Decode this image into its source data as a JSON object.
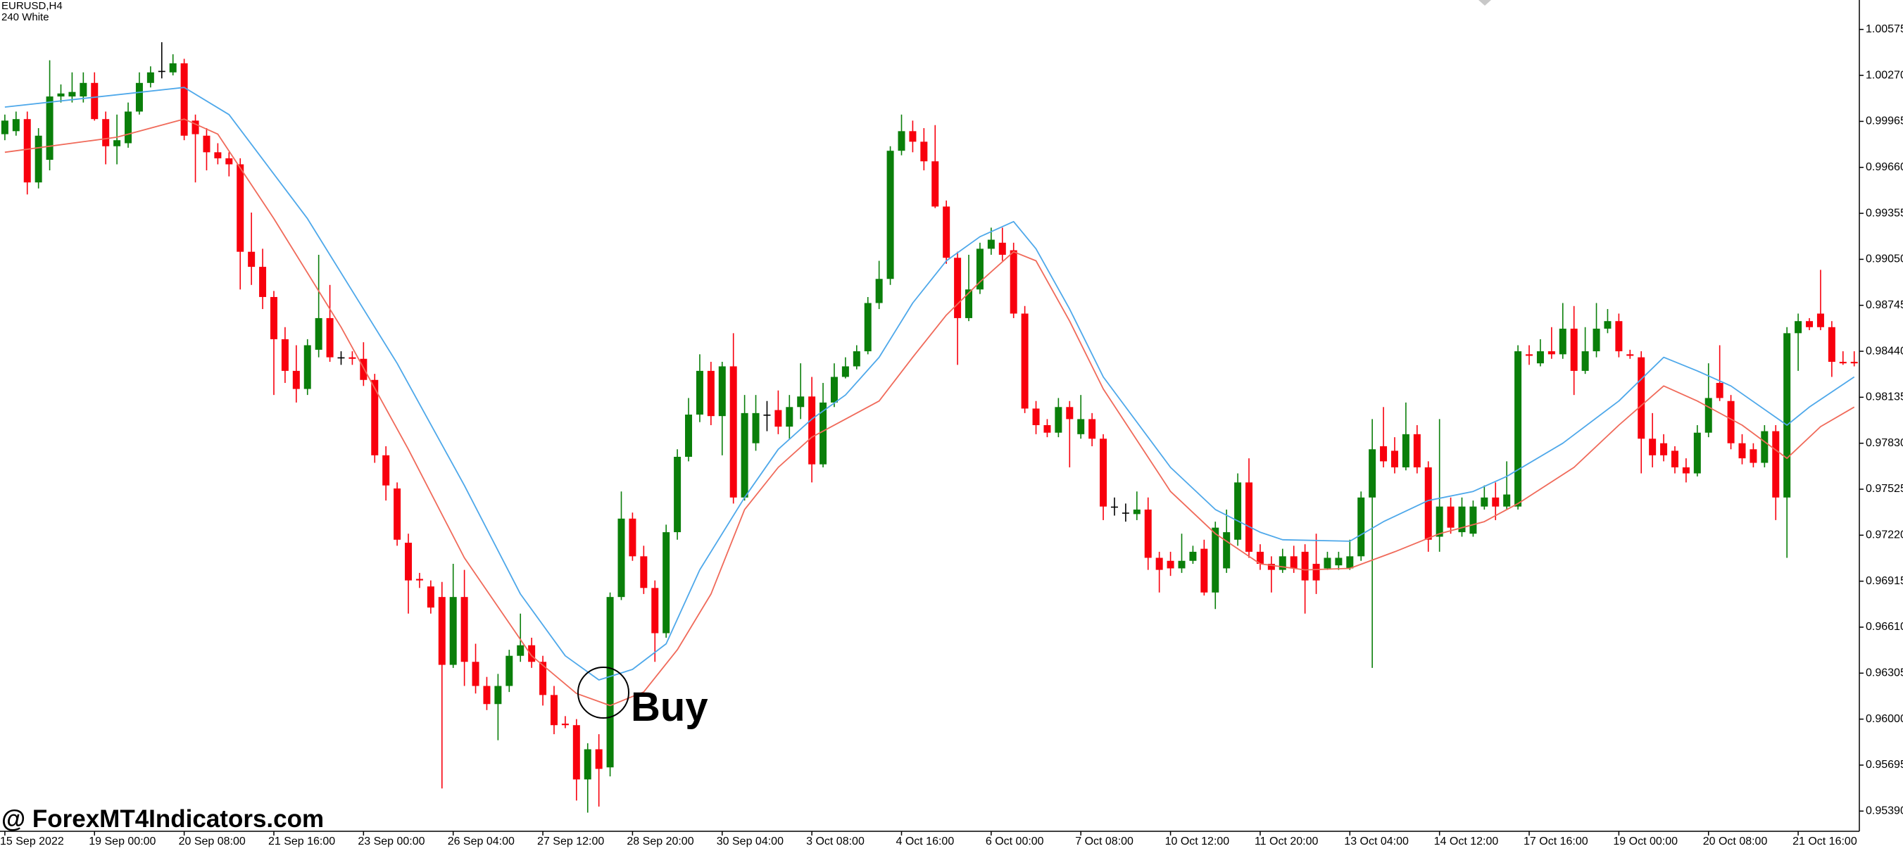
{
  "chart_data": {
    "type": "candlestick",
    "title": "EURUSD,H4",
    "subtitle": "240 White",
    "watermark": "@ ForexMT4Indicators.com",
    "annotation": "Buy",
    "up_color": "#0a7f0a",
    "down_color": "#f8000d",
    "doji_color": "#000000",
    "ylim": [
      0.95256,
      1.0077
    ],
    "yticks": [
      1.00575,
      {
        "value": 1.0027,
        "label": "1.00270"
      },
      0.99965,
      {
        "value": 0.9966,
        "label": "0.99660"
      },
      0.99355,
      {
        "value": 0.9905,
        "label": "0.99050"
      },
      0.98745,
      {
        "value": 0.9844,
        "label": "0.98440"
      },
      0.98135,
      {
        "value": 0.9783,
        "label": "0.97830"
      },
      0.97525,
      {
        "value": 0.9722,
        "label": "0.97220"
      },
      0.96915,
      {
        "value": 0.9661,
        "label": "0.96610"
      },
      0.96305,
      {
        "value": 0.96,
        "label": "0.96000"
      },
      0.95695,
      {
        "value": 0.9539,
        "label": "0.95390"
      }
    ],
    "categories": [
      "15 Sep 2022",
      null,
      null,
      null,
      null,
      null,
      null,
      null,
      "19 Sep 00:00",
      null,
      null,
      null,
      null,
      null,
      null,
      null,
      "20 Sep 08:00",
      null,
      null,
      null,
      null,
      null,
      null,
      null,
      "21 Sep 16:00",
      null,
      null,
      null,
      null,
      null,
      null,
      null,
      "23 Sep 00:00",
      null,
      null,
      null,
      null,
      null,
      null,
      null,
      "26 Sep 04:00",
      null,
      null,
      null,
      null,
      null,
      null,
      null,
      "27 Sep 12:00",
      null,
      null,
      null,
      null,
      null,
      null,
      null,
      "28 Sep 20:00",
      null,
      null,
      null,
      null,
      null,
      null,
      null,
      "30 Sep 04:00",
      null,
      null,
      null,
      null,
      null,
      null,
      null,
      "3 Oct 08:00",
      null,
      null,
      null,
      null,
      null,
      null,
      null,
      "4 Oct 16:00",
      null,
      null,
      null,
      null,
      null,
      null,
      null,
      "6 Oct 00:00",
      null,
      null,
      null,
      null,
      null,
      null,
      null,
      "7 Oct 08:00",
      null,
      null,
      null,
      null,
      null,
      null,
      null,
      "10 Oct 12:00",
      null,
      null,
      null,
      null,
      null,
      null,
      null,
      "11 Oct 20:00",
      null,
      null,
      null,
      null,
      null,
      null,
      null,
      "13 Oct 04:00",
      null,
      null,
      null,
      null,
      null,
      null,
      null,
      "14 Oct 12:00",
      null,
      null,
      null,
      null,
      null,
      null,
      null,
      "17 Oct 16:00",
      null,
      null,
      null,
      null,
      null,
      null,
      null,
      "19 Oct 00:00",
      null,
      null,
      null,
      null,
      null,
      null,
      null,
      "20 Oct 08:00",
      null,
      null,
      null,
      null,
      null,
      null,
      null,
      "21 Oct 16:00",
      null,
      null,
      null,
      null,
      null
    ],
    "candles": [
      [
        0.9988,
        1.0001,
        0.9984,
        0.9997
      ],
      [
        0.999,
        1.0003,
        0.9987,
        0.9998
      ],
      [
        0.9998,
        1.0003,
        0.9948,
        0.9956
      ],
      [
        0.9956,
        0.9992,
        0.9952,
        0.9987
      ],
      [
        0.9971,
        1.0037,
        0.9964,
        1.0013
      ],
      [
        1.0013,
        1.0021,
        1.0009,
        1.0015
      ],
      [
        1.0013,
        1.0029,
        1.0009,
        1.0016
      ],
      [
        1.0013,
        1.0029,
        1.0009,
        1.0022
      ],
      [
        1.0022,
        1.0029,
        0.9997,
        0.9998
      ],
      [
        0.9998,
        1.0003,
        0.9968,
        0.998
      ],
      [
        0.998,
        1.0001,
        0.9968,
        0.9984
      ],
      [
        0.9982,
        1.0009,
        0.9979,
        1.0003
      ],
      [
        1.0003,
        1.0029,
        1.0001,
        1.0022
      ],
      [
        1.0022,
        1.0033,
        1.0019,
        1.0029
      ],
      [
        1.003,
        1.0049,
        1.0025,
        1.003
      ],
      [
        1.0029,
        1.0041,
        1.0027,
        1.0035
      ],
      [
        1.0035,
        1.0038,
        0.9984,
        0.9987
      ],
      [
        0.9997,
        1.0001,
        0.9956,
        0.9988
      ],
      [
        0.9987,
        0.9992,
        0.9964,
        0.9976
      ],
      [
        0.9976,
        0.9982,
        0.9968,
        0.9972
      ],
      [
        0.9972,
        0.9976,
        0.996,
        0.9968
      ],
      [
        0.9968,
        0.9972,
        0.9885,
        0.991
      ],
      [
        0.991,
        0.9936,
        0.9888,
        0.99
      ],
      [
        0.99,
        0.9912,
        0.9872,
        0.988
      ],
      [
        0.988,
        0.9884,
        0.9815,
        0.9852
      ],
      [
        0.9852,
        0.986,
        0.9823,
        0.9831
      ],
      [
        0.9831,
        0.9848,
        0.981,
        0.9819
      ],
      [
        0.9819,
        0.9852,
        0.9815,
        0.9848
      ],
      [
        0.9845,
        0.9908,
        0.984,
        0.9866
      ],
      [
        0.9866,
        0.9888,
        0.9837,
        0.984
      ],
      [
        0.984,
        0.9844,
        0.9835,
        0.984
      ],
      [
        0.984,
        0.9844,
        0.9835,
        0.9839
      ],
      [
        0.9839,
        0.985,
        0.9821,
        0.9825
      ],
      [
        0.9825,
        0.9829,
        0.977,
        0.9775
      ],
      [
        0.9775,
        0.9781,
        0.9745,
        0.9755
      ],
      [
        0.9753,
        0.9757,
        0.9715,
        0.9719
      ],
      [
        0.9717,
        0.9723,
        0.967,
        0.9692
      ],
      [
        0.9693,
        0.9697,
        0.9687,
        0.9692
      ],
      [
        0.9688,
        0.9692,
        0.967,
        0.9674
      ],
      [
        0.9681,
        0.9691,
        0.9554,
        0.9636
      ],
      [
        0.9636,
        0.9703,
        0.9634,
        0.9681
      ],
      [
        0.9681,
        0.9699,
        0.9622,
        0.9638
      ],
      [
        0.9638,
        0.965,
        0.9617,
        0.9622
      ],
      [
        0.9622,
        0.9628,
        0.9606,
        0.961
      ],
      [
        0.961,
        0.963,
        0.9586,
        0.9622
      ],
      [
        0.9622,
        0.9646,
        0.9618,
        0.9642
      ],
      [
        0.9642,
        0.967,
        0.9638,
        0.9649
      ],
      [
        0.9649,
        0.9654,
        0.9634,
        0.9638
      ],
      [
        0.9638,
        0.9642,
        0.9609,
        0.9616
      ],
      [
        0.9616,
        0.9622,
        0.959,
        0.9596
      ],
      [
        0.9597,
        0.9602,
        0.9594,
        0.9596
      ],
      [
        0.9596,
        0.96,
        0.9546,
        0.956
      ],
      [
        0.956,
        0.9584,
        0.9538,
        0.958
      ],
      [
        0.958,
        0.959,
        0.9542,
        0.9567
      ],
      [
        0.9568,
        0.9684,
        0.9562,
        0.9681
      ],
      [
        0.9681,
        0.9751,
        0.9679,
        0.9733
      ],
      [
        0.9733,
        0.9737,
        0.9705,
        0.9708
      ],
      [
        0.9708,
        0.9715,
        0.9683,
        0.9687
      ],
      [
        0.9687,
        0.9692,
        0.9638,
        0.9657
      ],
      [
        0.9657,
        0.9729,
        0.9654,
        0.9724
      ],
      [
        0.9724,
        0.9779,
        0.9719,
        0.9774
      ],
      [
        0.9774,
        0.9813,
        0.9771,
        0.9802
      ],
      [
        0.9802,
        0.9842,
        0.9797,
        0.9831
      ],
      [
        0.9831,
        0.9837,
        0.9795,
        0.9801
      ],
      [
        0.9801,
        0.9837,
        0.9775,
        0.9834
      ],
      [
        0.9834,
        0.9856,
        0.9743,
        0.9747
      ],
      [
        0.9747,
        0.9815,
        0.9745,
        0.9803
      ],
      [
        0.9783,
        0.9815,
        0.9778,
        0.9803
      ],
      [
        0.9802,
        0.9811,
        0.9791,
        0.9802
      ],
      [
        0.9805,
        0.9818,
        0.9789,
        0.9794
      ],
      [
        0.9794,
        0.9815,
        0.9786,
        0.9807
      ],
      [
        0.9807,
        0.9836,
        0.9799,
        0.9814
      ],
      [
        0.9814,
        0.9827,
        0.9757,
        0.9769
      ],
      [
        0.9769,
        0.9823,
        0.9767,
        0.981
      ],
      [
        0.981,
        0.9836,
        0.9807,
        0.9827
      ],
      [
        0.9827,
        0.984,
        0.9826,
        0.9834
      ],
      [
        0.9834,
        0.9848,
        0.9832,
        0.9844
      ],
      [
        0.9844,
        0.988,
        0.9842,
        0.9876
      ],
      [
        0.9876,
        0.9904,
        0.9872,
        0.9892
      ],
      [
        0.9892,
        0.998,
        0.9888,
        0.9977
      ],
      [
        0.9977,
        1.0001,
        0.9974,
        0.999
      ],
      [
        0.999,
        0.9997,
        0.9976,
        0.9983
      ],
      [
        0.9983,
        0.9992,
        0.9964,
        0.997
      ],
      [
        0.997,
        0.9994,
        0.9939,
        0.994
      ],
      [
        0.994,
        0.9944,
        0.9902,
        0.9906
      ],
      [
        0.9906,
        0.991,
        0.9835,
        0.9866
      ],
      [
        0.9866,
        0.9908,
        0.9864,
        0.9885
      ],
      [
        0.9885,
        0.9916,
        0.9882,
        0.9912
      ],
      [
        0.9912,
        0.9926,
        0.9908,
        0.9918
      ],
      [
        0.9916,
        0.9926,
        0.9904,
        0.9908
      ],
      [
        0.9911,
        0.9916,
        0.9866,
        0.9869
      ],
      [
        0.9869,
        0.9874,
        0.9803,
        0.9806
      ],
      [
        0.9806,
        0.9811,
        0.9789,
        0.9795
      ],
      [
        0.9795,
        0.9799,
        0.9787,
        0.979
      ],
      [
        0.979,
        0.9813,
        0.9787,
        0.9807
      ],
      [
        0.9807,
        0.9811,
        0.9767,
        0.9799
      ],
      [
        0.9789,
        0.9815,
        0.9786,
        0.9799
      ],
      [
        0.9799,
        0.9803,
        0.9781,
        0.9786
      ],
      [
        0.9786,
        0.9789,
        0.9732,
        0.9741
      ],
      [
        0.9741,
        0.9747,
        0.9735,
        0.9741
      ],
      [
        0.9737,
        0.9743,
        0.9731,
        0.9737
      ],
      [
        0.9736,
        0.9751,
        0.9732,
        0.9739
      ],
      [
        0.9739,
        0.9747,
        0.9699,
        0.9707
      ],
      [
        0.9707,
        0.9711,
        0.9684,
        0.9699
      ],
      [
        0.9705,
        0.9711,
        0.9695,
        0.97
      ],
      [
        0.97,
        0.9723,
        0.9697,
        0.9705
      ],
      [
        0.9705,
        0.9715,
        0.9703,
        0.9711
      ],
      [
        0.9713,
        0.9719,
        0.9682,
        0.9684
      ],
      [
        0.9684,
        0.9731,
        0.9673,
        0.9727
      ],
      [
        0.97,
        0.9739,
        0.9697,
        0.9724
      ],
      [
        0.9719,
        0.9763,
        0.9715,
        0.9757
      ],
      [
        0.9757,
        0.9773,
        0.9707,
        0.9711
      ],
      [
        0.9711,
        0.9716,
        0.9699,
        0.9703
      ],
      [
        0.9703,
        0.9708,
        0.9684,
        0.9699
      ],
      [
        0.9699,
        0.9713,
        0.9697,
        0.9708
      ],
      [
        0.9708,
        0.9715,
        0.9697,
        0.97
      ],
      [
        0.9711,
        0.9716,
        0.967,
        0.9692
      ],
      [
        0.9703,
        0.9723,
        0.9683,
        0.9692
      ],
      [
        0.97,
        0.9711,
        0.9699,
        0.9707
      ],
      [
        0.9702,
        0.9711,
        0.9699,
        0.9707
      ],
      [
        0.97,
        0.9719,
        0.9699,
        0.9708
      ],
      [
        0.9708,
        0.9751,
        0.9705,
        0.9747
      ],
      [
        0.9747,
        0.9799,
        0.9634,
        0.9779
      ],
      [
        0.9781,
        0.9807,
        0.9767,
        0.9771
      ],
      [
        0.9778,
        0.9787,
        0.9763,
        0.9767
      ],
      [
        0.9767,
        0.981,
        0.9765,
        0.9789
      ],
      [
        0.9789,
        0.9795,
        0.9763,
        0.9767
      ],
      [
        0.9767,
        0.9771,
        0.9711,
        0.9719
      ],
      [
        0.9721,
        0.9799,
        0.9711,
        0.9741
      ],
      [
        0.9741,
        0.9747,
        0.9723,
        0.9727
      ],
      [
        0.9724,
        0.9747,
        0.9721,
        0.9741
      ],
      [
        0.9723,
        0.9745,
        0.9721,
        0.9741
      ],
      [
        0.9741,
        0.9755,
        0.9739,
        0.9747
      ],
      [
        0.9747,
        0.9757,
        0.9732,
        0.9741
      ],
      [
        0.9741,
        0.9771,
        0.9739,
        0.9749
      ],
      [
        0.9741,
        0.9848,
        0.9739,
        0.9844
      ],
      [
        0.9842,
        0.9848,
        0.9835,
        0.9841
      ],
      [
        0.9836,
        0.9852,
        0.9834,
        0.9844
      ],
      [
        0.9844,
        0.986,
        0.9839,
        0.9842
      ],
      [
        0.9842,
        0.9876,
        0.9839,
        0.9859
      ],
      [
        0.9859,
        0.9874,
        0.9815,
        0.9831
      ],
      [
        0.9831,
        0.986,
        0.9829,
        0.9844
      ],
      [
        0.9844,
        0.9876,
        0.984,
        0.9859
      ],
      [
        0.9859,
        0.9872,
        0.9856,
        0.9864
      ],
      [
        0.9864,
        0.9869,
        0.984,
        0.9844
      ],
      [
        0.9842,
        0.9845,
        0.9839,
        0.9841
      ],
      [
        0.984,
        0.9844,
        0.9763,
        0.9786
      ],
      [
        0.9786,
        0.9803,
        0.9767,
        0.9775
      ],
      [
        0.9783,
        0.9789,
        0.9771,
        0.9775
      ],
      [
        0.9778,
        0.9781,
        0.9763,
        0.9767
      ],
      [
        0.9767,
        0.9773,
        0.9757,
        0.9763
      ],
      [
        0.9763,
        0.9795,
        0.9761,
        0.979
      ],
      [
        0.979,
        0.9836,
        0.9787,
        0.9813
      ],
      [
        0.9823,
        0.9848,
        0.9811,
        0.9813
      ],
      [
        0.9811,
        0.9815,
        0.9779,
        0.9783
      ],
      [
        0.9783,
        0.9789,
        0.9769,
        0.9773
      ],
      [
        0.9779,
        0.9783,
        0.9767,
        0.977
      ],
      [
        0.977,
        0.9795,
        0.9767,
        0.9791
      ],
      [
        0.9791,
        0.9795,
        0.9732,
        0.9747
      ],
      [
        0.9747,
        0.986,
        0.9707,
        0.9856
      ],
      [
        0.9856,
        0.9869,
        0.9831,
        0.9864
      ],
      [
        0.9864,
        0.9866,
        0.9858,
        0.986
      ],
      [
        0.9869,
        0.9898,
        0.9858,
        0.986
      ],
      [
        0.986,
        0.9864,
        0.9827,
        0.9837
      ],
      [
        0.9837,
        0.9844,
        0.9835,
        0.9836
      ],
      [
        0.9837,
        0.9844,
        0.9834,
        0.9836
      ]
    ],
    "lines": [
      {
        "color": "#4ea8ea",
        "x": [
          0,
          16,
          20,
          27,
          35,
          41,
          46,
          50,
          53,
          56,
          59,
          62,
          66,
          69,
          72,
          75,
          78,
          81,
          84,
          87,
          90,
          92,
          95,
          98,
          104,
          108,
          112,
          114,
          120,
          123,
          127,
          131,
          134,
          139,
          144,
          148,
          151,
          154,
          159,
          161,
          165
        ],
        "values": [
          1.0006,
          1.0019,
          1.0001,
          0.9932,
          0.9836,
          0.9755,
          0.9683,
          0.9642,
          0.9626,
          0.9633,
          0.965,
          0.9699,
          0.9747,
          0.9779,
          0.9799,
          0.9815,
          0.984,
          0.9876,
          0.9904,
          0.992,
          0.993,
          0.9912,
          0.9872,
          0.9827,
          0.9767,
          0.9739,
          0.9724,
          0.9719,
          0.9718,
          0.9731,
          0.9745,
          0.9751,
          0.9761,
          0.9783,
          0.9811,
          0.984,
          0.9831,
          0.9821,
          0.9795,
          0.9807,
          0.9827
        ]
      },
      {
        "color": "#f06a5a",
        "x": [
          0,
          10,
          16,
          19,
          24,
          30,
          36,
          41,
          47,
          51,
          54,
          57,
          60,
          63,
          66,
          69,
          72,
          75,
          78,
          81,
          84,
          87,
          90,
          92,
          95,
          98,
          104,
          108,
          112,
          116,
          120,
          124,
          128,
          132,
          135,
          140,
          144,
          148,
          151,
          155,
          159,
          162,
          165
        ],
        "values": [
          0.9976,
          0.9986,
          0.9998,
          0.9988,
          0.9932,
          0.986,
          0.9779,
          0.9707,
          0.9642,
          0.9617,
          0.9609,
          0.9618,
          0.9646,
          0.9683,
          0.9739,
          0.9767,
          0.9787,
          0.9799,
          0.9811,
          0.984,
          0.9868,
          0.989,
          0.991,
          0.9904,
          0.9864,
          0.9819,
          0.9751,
          0.9723,
          0.9703,
          0.9699,
          0.97,
          0.9711,
          0.9723,
          0.9731,
          0.9743,
          0.9767,
          0.9795,
          0.9821,
          0.9811,
          0.9795,
          0.9773,
          0.9794,
          0.9807
        ]
      }
    ]
  }
}
